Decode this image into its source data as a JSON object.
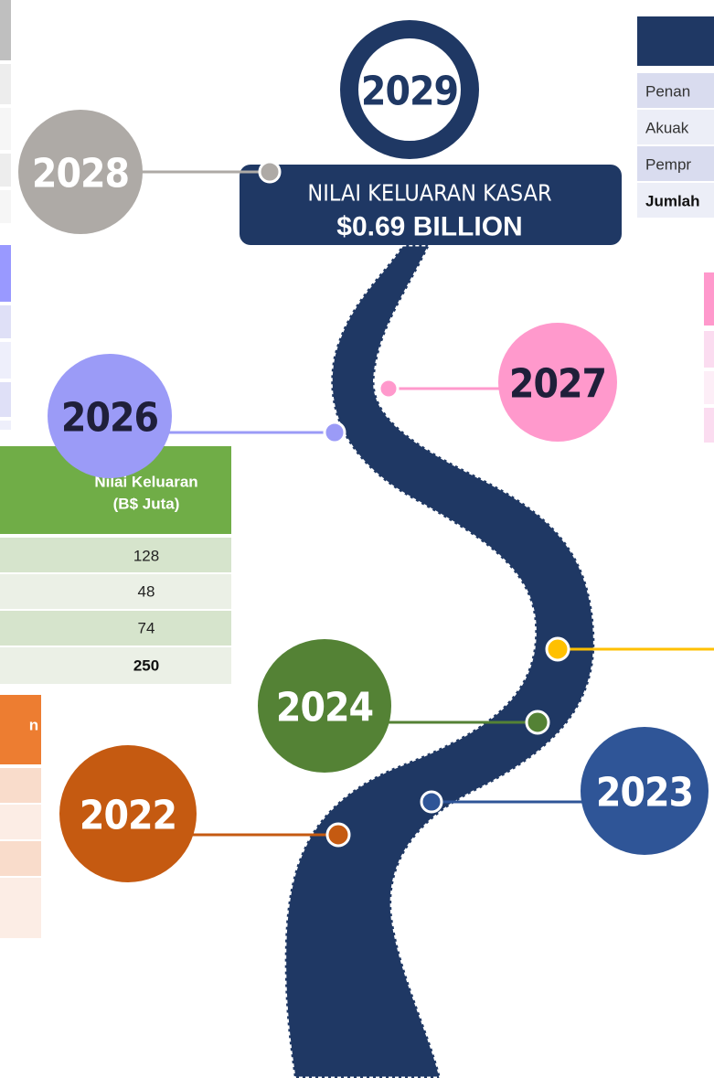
{
  "milestones": {
    "y2029": "2029",
    "y2028": "2028",
    "y2027": "2027",
    "y2026": "2026",
    "y2024": "2024",
    "y2023": "2023",
    "y2022": "2022"
  },
  "highlight": {
    "label": "NILAI KELUARAN KASAR",
    "value": "$0.69 BILLION"
  },
  "table_2029": {
    "rows": [
      "Penan",
      "Akuak",
      "Pempr",
      "Jumlah"
    ]
  },
  "table_2024": {
    "header": [
      "Nilai Keluaran",
      "(B$ Juta)"
    ],
    "rows": [
      "128",
      "48",
      "74",
      "250"
    ]
  },
  "table_2022": {
    "header": "n"
  }
}
